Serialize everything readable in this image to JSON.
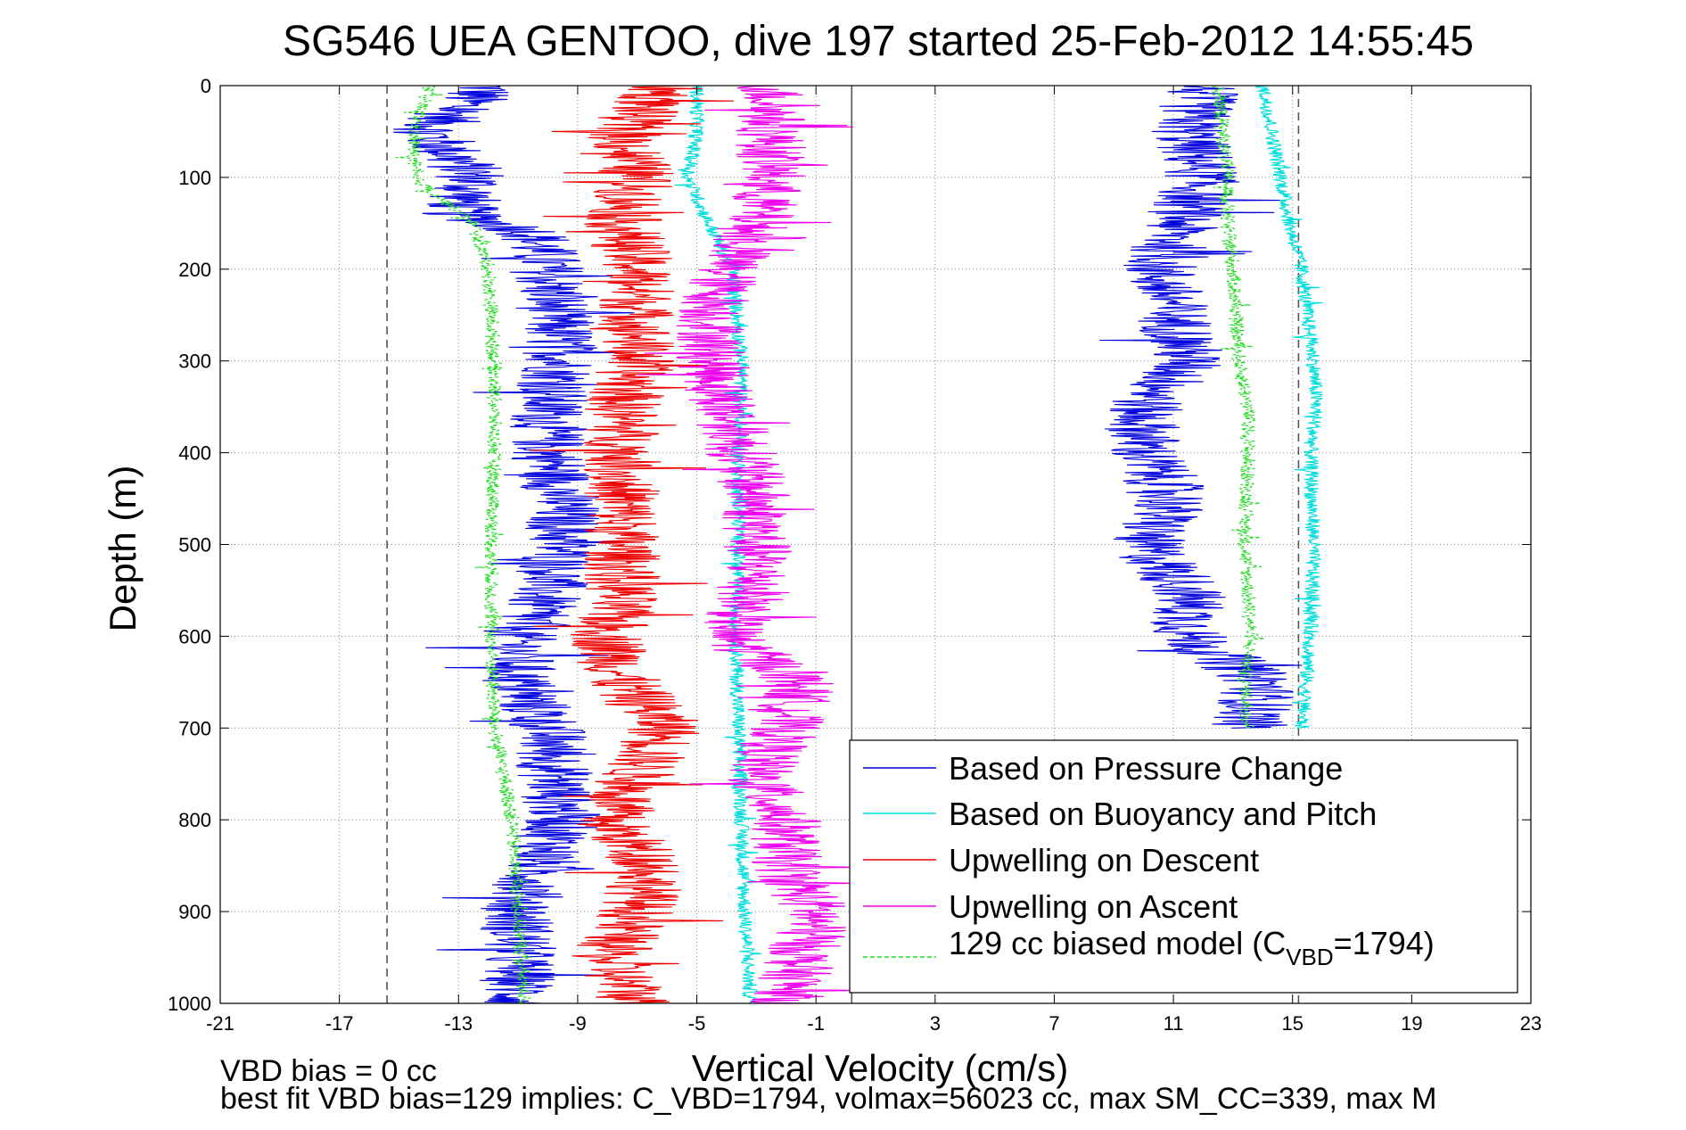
{
  "chart_data": {
    "type": "line",
    "title": "SG546 UEA GENTOO, dive 197 started 25-Feb-2012 14:55:45",
    "xlabel": "Vertical Velocity (cm/s)",
    "ylabel": "Depth (m)",
    "xlim": [
      -21,
      23
    ],
    "ylim": [
      0,
      1000
    ],
    "y_reversed": true,
    "x_ticks": [
      -21,
      -17,
      -13,
      -9,
      -5,
      -1,
      3,
      7,
      11,
      15,
      19,
      23
    ],
    "y_ticks": [
      0,
      100,
      200,
      300,
      400,
      500,
      600,
      700,
      800,
      900,
      1000
    ],
    "grid": true,
    "legend_position": "bottom-right",
    "reference_lines": [
      {
        "x": -15.4,
        "style": "dashed",
        "color": "#555555"
      },
      {
        "x": 0.2,
        "style": "solid",
        "color": "#555555"
      },
      {
        "x": 15.2,
        "style": "dashed",
        "color": "#555555"
      }
    ],
    "series": [
      {
        "name": "Based on Pressure Change",
        "color": "#0000dd",
        "segments": [
          {
            "depth": [
              0,
              25,
              50,
              100,
              140,
              160,
              200,
              300,
              350,
              400,
              450,
              500,
              550,
              600,
              650,
              700,
              800,
              900,
              1000
            ],
            "value": [
              -12,
              -13,
              -14,
              -12.5,
              -13,
              -10.5,
              -10,
              -9.5,
              -10,
              -10,
              -9.5,
              -9.5,
              -10,
              -11,
              -11,
              -10,
              -9.5,
              -11,
              -11
            ]
          },
          {
            "depth": [
              0,
              50,
              100,
              200,
              300,
              350,
              400,
              450,
              500,
              550,
              600,
              650,
              700
            ],
            "value": [
              12,
              11.5,
              12,
              10.5,
              11.5,
              10,
              10,
              11,
              10,
              11.5,
              11.5,
              14,
              13.5
            ]
          }
        ]
      },
      {
        "name": "Based on Buoyancy and Pitch",
        "color": "#00dddd",
        "segments": [
          {
            "depth": [
              0,
              50,
              100,
              150,
              200,
              300,
              400,
              500,
              600,
              700,
              800,
              900,
              1000
            ],
            "value": [
              -5,
              -5,
              -5.3,
              -4.6,
              -3.8,
              -3.5,
              -3.6,
              -3.6,
              -3.7,
              -3.6,
              -3.5,
              -3.4,
              -3.2
            ]
          },
          {
            "depth": [
              0,
              50,
              100,
              150,
              200,
              300,
              350,
              400,
              500,
              600,
              700
            ],
            "value": [
              14,
              14.3,
              14.6,
              14.9,
              15.3,
              15.7,
              15.8,
              15.6,
              15.7,
              15.6,
              15.3
            ]
          }
        ]
      },
      {
        "name": "Upwelling on Descent",
        "color": "#ee0000",
        "segments": [
          {
            "depth": [
              0,
              50,
              100,
              150,
              200,
              250,
              300,
              350,
              400,
              450,
              500,
              550,
              600,
              650,
              700,
              750,
              800,
              850,
              900,
              950,
              1000
            ],
            "value": [
              -6,
              -7.5,
              -7,
              -7.5,
              -7,
              -7,
              -7,
              -7.5,
              -7.5,
              -7.5,
              -7.5,
              -7.5,
              -8,
              -7.5,
              -6,
              -7,
              -8,
              -6.5,
              -7,
              -8,
              -7
            ]
          }
        ]
      },
      {
        "name": "Upwelling on Ascent",
        "color": "#ee00ee",
        "segments": [
          {
            "depth": [
              0,
              50,
              100,
              150,
              200,
              250,
              300,
              350,
              400,
              450,
              500,
              550,
              600,
              650,
              700,
              750,
              800,
              850,
              900,
              950,
              1000
            ],
            "value": [
              -2.5,
              -2.5,
              -2.5,
              -3,
              -4,
              -4.5,
              -4.5,
              -4,
              -3.5,
              -3,
              -3,
              -3,
              -4,
              -1.5,
              -2,
              -3,
              -2,
              -2,
              -1,
              -1.5,
              -2
            ]
          }
        ]
      },
      {
        "name": "129 cc biased model (C_VBD=1794)",
        "color": "#22dd22",
        "style": "dashed",
        "segments": [
          {
            "depth": [
              0,
              50,
              100,
              150,
              200,
              300,
              400,
              500,
              600,
              700,
              800,
              900,
              1000
            ],
            "value": [
              -14,
              -14.5,
              -14.5,
              -12.5,
              -12,
              -11.8,
              -11.8,
              -11.9,
              -11.9,
              -11.8,
              -11.2,
              -11,
              -10.8
            ]
          },
          {
            "depth": [
              0,
              100,
              150,
              200,
              300,
              350,
              400,
              500,
              600,
              650,
              700
            ],
            "value": [
              12.5,
              12.8,
              12.8,
              13,
              13.2,
              13.5,
              13.5,
              13.4,
              13.6,
              13.4,
              13.5
            ]
          }
        ]
      }
    ]
  },
  "legend": {
    "items": [
      {
        "label": "Based on Pressure Change",
        "color": "#0000dd",
        "dashed": false
      },
      {
        "label": "Based on Buoyancy and Pitch",
        "color": "#00dddd",
        "dashed": false
      },
      {
        "label": "Upwelling on Descent",
        "color": "#ee0000",
        "dashed": false
      },
      {
        "label": "Upwelling on Ascent",
        "color": "#ee00ee",
        "dashed": false
      }
    ],
    "model_prefix": "129 cc biased model (C",
    "model_subscript": "VBD",
    "model_suffix": "=1794)",
    "model_color": "#22dd22"
  },
  "footer": {
    "line1": "VBD bias = 0 cc",
    "line2": "best fit VBD bias=129 implies: C_VBD=1794, volmax=56023 cc, max SM_CC=339, max M"
  }
}
